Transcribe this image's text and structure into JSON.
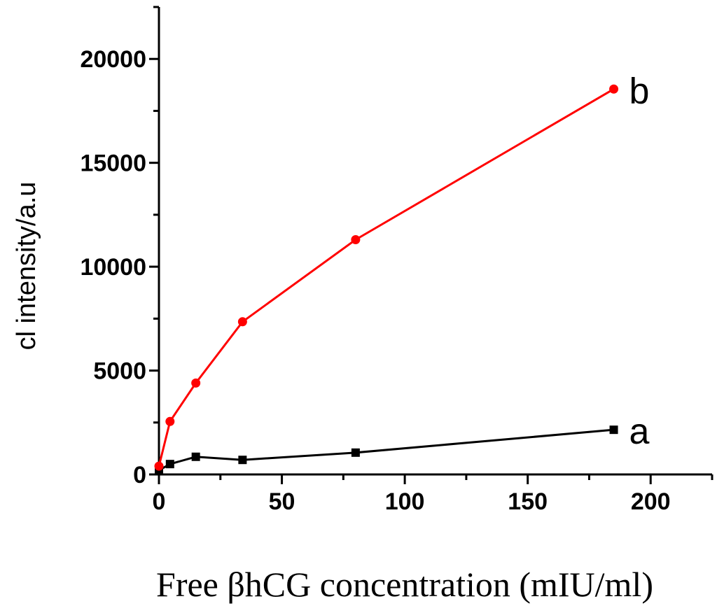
{
  "chart_data": {
    "type": "line",
    "title": "",
    "xlabel": "Free βhCG concentration (mIU/ml)",
    "ylabel": "cl intensity/a.u",
    "xlim": [
      0,
      225
    ],
    "ylim": [
      0,
      22500
    ],
    "xticks": [
      0,
      50,
      100,
      150,
      200
    ],
    "yticks": [
      0,
      5000,
      10000,
      15000,
      20000
    ],
    "xtick_labels": [
      "0",
      "50",
      "100",
      "150",
      "200"
    ],
    "ytick_labels": [
      "0",
      "5000",
      "10000",
      "15000",
      "20000"
    ],
    "grid": false,
    "legend": "none",
    "series": [
      {
        "name": "a",
        "color": "#000000",
        "marker": "square",
        "x": [
          0,
          4.5,
          15,
          34,
          80,
          185
        ],
        "y": [
          200,
          500,
          850,
          700,
          1050,
          2150
        ]
      },
      {
        "name": "b",
        "color": "#ff0000",
        "marker": "circle",
        "x": [
          0,
          4.5,
          15,
          34,
          80,
          185
        ],
        "y": [
          400,
          2550,
          4400,
          7350,
          11300,
          18550
        ]
      }
    ]
  }
}
